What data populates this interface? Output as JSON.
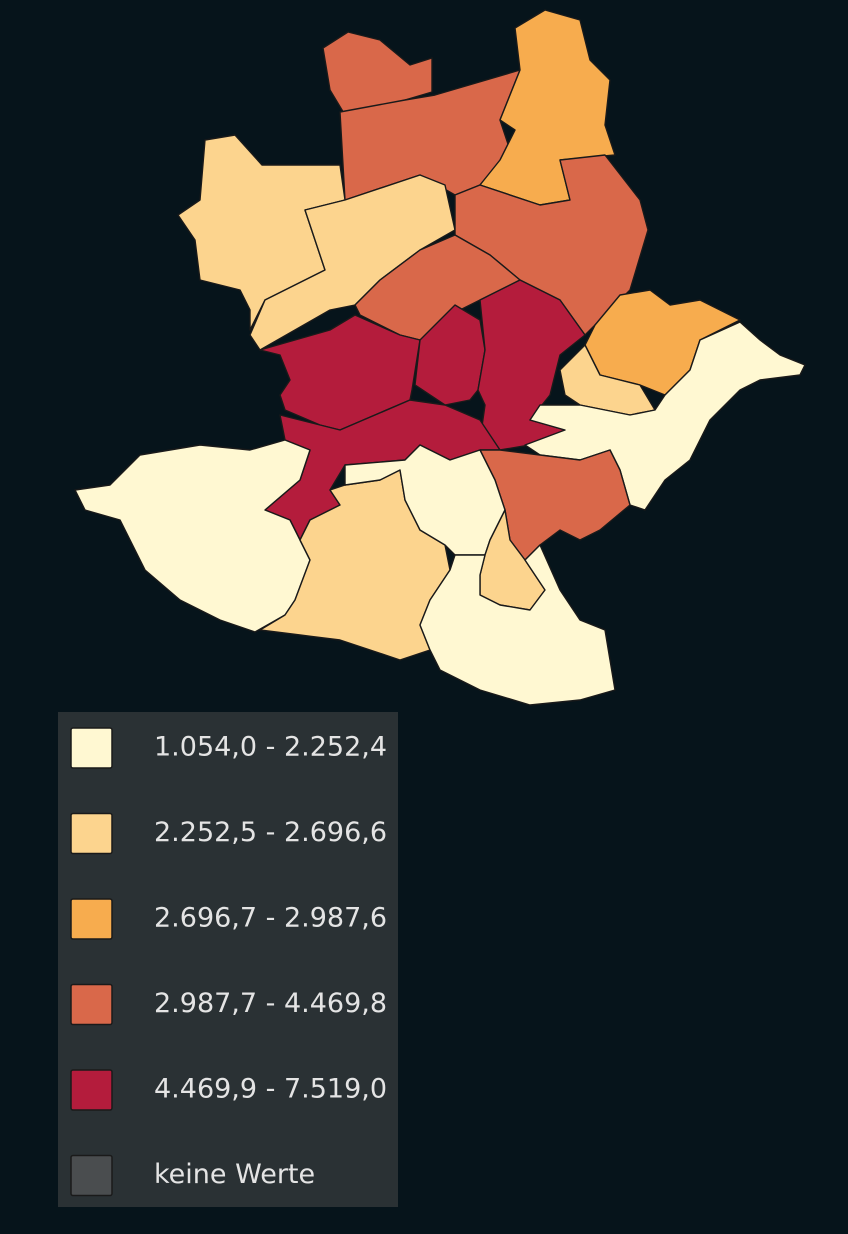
{
  "legend": {
    "items": [
      {
        "label": "1.054,0 - 2.252,4",
        "color": "#fff8d2"
      },
      {
        "label": "2.252,5 - 2.696,6",
        "color": "#fcd48e"
      },
      {
        "label": "2.696,7 - 2.987,6",
        "color": "#f7ac4e"
      },
      {
        "label": "2.987,7 - 4.469,8",
        "color": "#d9684a"
      },
      {
        "label": "4.469,9 - 7.519,0",
        "color": "#b41c3c"
      },
      {
        "label": "keine Werte",
        "color": "#4a4d4f"
      }
    ]
  }
}
